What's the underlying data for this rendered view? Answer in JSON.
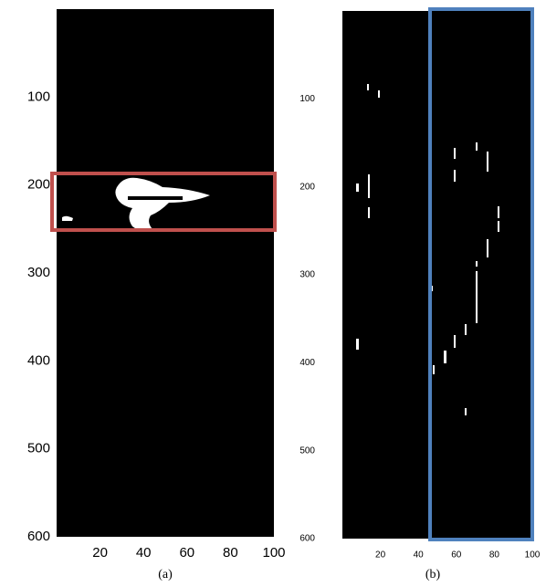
{
  "panels": [
    {
      "caption": "(a)",
      "xlim": [
        0,
        100
      ],
      "ylim": [
        0,
        600
      ],
      "xticks": [
        20,
        40,
        60,
        80,
        100
      ],
      "yticks": [
        100,
        200,
        300,
        400,
        500,
        600
      ]
    },
    {
      "caption": "(b)",
      "xlim": [
        0,
        100
      ],
      "ylim": [
        0,
        600
      ],
      "xticks": [
        20,
        40,
        60,
        80,
        100
      ],
      "yticks": [
        100,
        200,
        300,
        400,
        500,
        600
      ]
    }
  ]
}
